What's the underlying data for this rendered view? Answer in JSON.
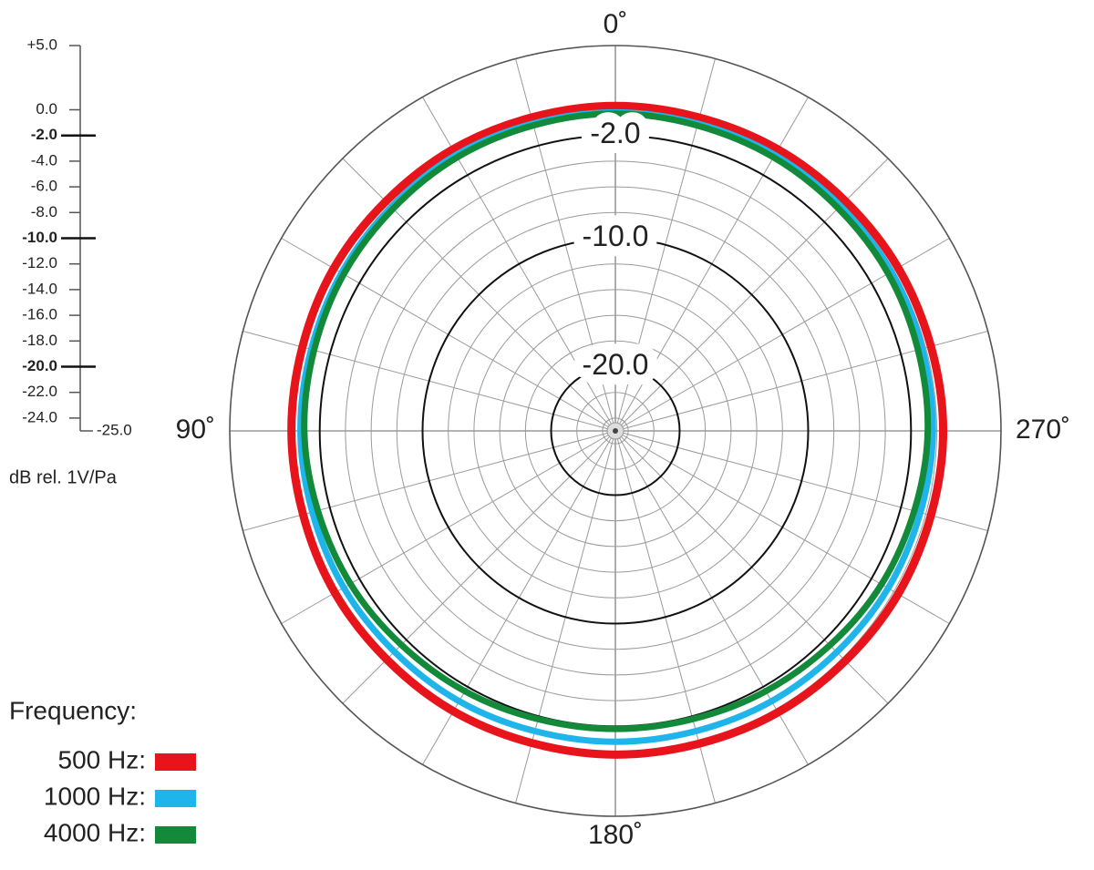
{
  "chart_data": {
    "type": "polar",
    "axis_label": "dB rel. 1V/Pa",
    "rlim": [
      -25,
      5
    ],
    "rticks": [
      {
        "value": 5,
        "label": "+5.0"
      },
      {
        "value": 0,
        "label": "0.0"
      },
      {
        "value": -2,
        "label": "-2.0"
      },
      {
        "value": -4,
        "label": "-4.0"
      },
      {
        "value": -6,
        "label": "-6.0"
      },
      {
        "value": -8,
        "label": "-8.0"
      },
      {
        "value": -10,
        "label": "-10.0"
      },
      {
        "value": -12,
        "label": "-12.0"
      },
      {
        "value": -14,
        "label": "-14.0"
      },
      {
        "value": -16,
        "label": "-16.0"
      },
      {
        "value": -18,
        "label": "-18.0"
      },
      {
        "value": -20,
        "label": "-20.0"
      },
      {
        "value": -22,
        "label": "-22.0"
      },
      {
        "value": -24,
        "label": "-24.0"
      },
      {
        "value": -25,
        "label": "-25.0"
      }
    ],
    "ring_labels": [
      {
        "value": -2,
        "label": "-2.0"
      },
      {
        "value": -10,
        "label": "-10.0"
      },
      {
        "value": -20,
        "label": "-20.0"
      }
    ],
    "angle_ticks": [
      {
        "value": 0,
        "label": "0˚"
      },
      {
        "value": 90,
        "label": "90˚"
      },
      {
        "value": 180,
        "label": "180˚"
      },
      {
        "value": 270,
        "label": "270˚"
      }
    ],
    "angles": [
      0,
      30,
      60,
      90,
      120,
      150,
      180,
      210,
      240,
      270,
      300,
      330
    ],
    "legend_title": "Frequency:",
    "series": [
      {
        "name": "500 Hz:",
        "color": "#e8141b",
        "values": [
          0.3,
          0.3,
          0.3,
          0.2,
          0.2,
          0.2,
          0.2,
          0.3,
          0.4,
          0.5,
          0.4,
          0.3
        ]
      },
      {
        "name": "1000 Hz:",
        "color": "#1fb5ea",
        "values": [
          -0.2,
          -0.2,
          -0.4,
          -0.5,
          -0.6,
          -0.7,
          -0.8,
          -0.7,
          -0.5,
          -0.3,
          -0.2,
          -0.2
        ]
      },
      {
        "name": "4000 Hz:",
        "color": "#138a3a",
        "values": [
          -0.3,
          -0.4,
          -0.6,
          -0.8,
          -1.2,
          -1.6,
          -1.8,
          -1.6,
          -1.1,
          -0.7,
          -0.5,
          -0.4
        ]
      }
    ]
  }
}
